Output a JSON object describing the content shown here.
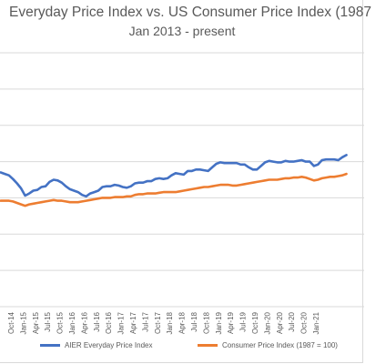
{
  "chart_data": {
    "type": "line",
    "title": "Everyday Price Index vs. US Consumer Price Index (1987",
    "subtitle": "Jan 2013 - present",
    "xlabel": "",
    "ylabel": "",
    "grid": true,
    "legend_position": "bottom",
    "x_ticks": [
      "Oct-14",
      "Jan-15",
      "Apr-15",
      "Jul-15",
      "Oct-15",
      "Jan-16",
      "Apr-16",
      "Jul-16",
      "Oct-16",
      "Jan-17",
      "Apr-17",
      "Jul-17",
      "Oct-17",
      "Jan-18",
      "Apr-18",
      "Jul-18",
      "Oct-18",
      "Jan-19",
      "Apr-19",
      "Jul-19",
      "Oct-19",
      "Jan-20",
      "Apr-20",
      "Jul-20",
      "Oct-20",
      "Jan-21"
    ],
    "x_start": "Jul-14",
    "x_start_fraction": 0.5,
    "ylim": [
      0,
      350
    ],
    "series": [
      {
        "name": "AIER Everyday Price Index",
        "color": "#4472C4",
        "values": [
          185,
          183,
          181,
          176,
          170,
          163,
          153,
          156,
          160,
          161,
          165,
          166,
          172,
          175,
          174,
          171,
          166,
          162,
          160,
          158,
          154,
          152,
          156,
          158,
          160,
          165,
          166,
          166,
          168,
          167,
          165,
          164,
          166,
          170,
          171,
          171,
          173,
          173,
          176,
          177,
          176,
          177,
          181,
          184,
          183,
          182,
          187,
          187,
          189,
          189,
          188,
          187,
          192,
          197,
          199,
          198,
          198,
          198,
          198,
          196,
          196,
          192,
          189,
          189,
          194,
          199,
          201,
          200,
          199,
          199,
          201,
          200,
          200,
          201,
          202,
          200,
          200,
          194,
          196,
          202,
          203,
          203,
          203,
          202,
          206,
          209
        ]
      },
      {
        "name": "Consumer Price Index (1987 = 100)",
        "color": "#ED7D31",
        "values": [
          146,
          146,
          146,
          145,
          143,
          141,
          139,
          141,
          142,
          143,
          144,
          145,
          146,
          147,
          146,
          146,
          145,
          144,
          144,
          144,
          145,
          146,
          147,
          148,
          149,
          150,
          150,
          150,
          151,
          151,
          151,
          152,
          152,
          154,
          155,
          155,
          156,
          156,
          156,
          157,
          158,
          158,
          158,
          158,
          159,
          160,
          161,
          162,
          163,
          164,
          165,
          165,
          166,
          167,
          168,
          168,
          168,
          167,
          167,
          168,
          169,
          170,
          171,
          172,
          173,
          174,
          175,
          175,
          175,
          176,
          177,
          177,
          178,
          178,
          179,
          178,
          176,
          174,
          175,
          177,
          178,
          179,
          179,
          180,
          181,
          183
        ]
      }
    ]
  }
}
